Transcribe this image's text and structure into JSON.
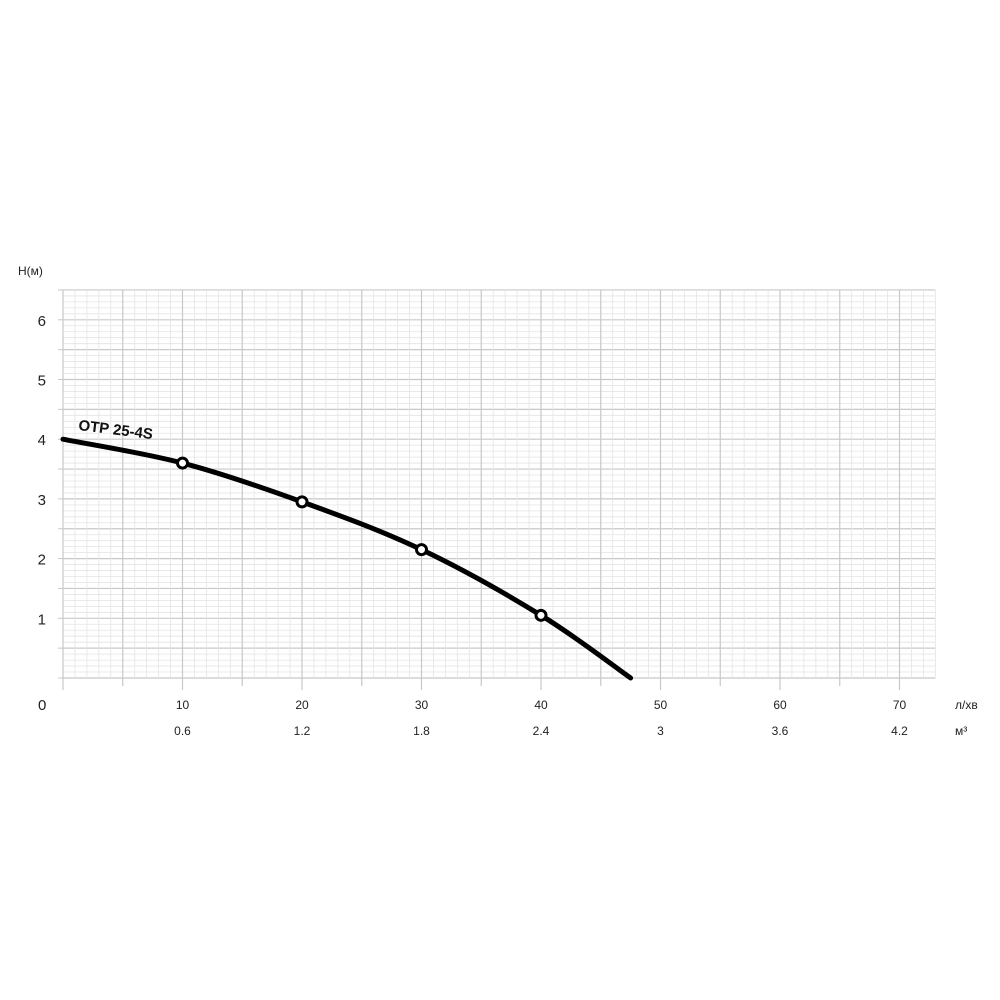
{
  "chart_data": {
    "type": "line",
    "ylabel": "H(м)",
    "xlabel_primary": "л/хв",
    "xlabel_secondary": "м³",
    "origin_label": "0",
    "xlim": [
      0,
      73
    ],
    "ylim": [
      0,
      6.5
    ],
    "grid": true,
    "x_ticks": [
      10,
      20,
      30,
      40,
      50,
      60,
      70
    ],
    "x_tick_labels": [
      "10",
      "20",
      "30",
      "40",
      "50",
      "60",
      "70"
    ],
    "x_secondary_tick_labels": [
      "0.6",
      "1.2",
      "1.8",
      "2.4",
      "3",
      "3.6",
      "4.2"
    ],
    "y_ticks": [
      1,
      2,
      3,
      4,
      5,
      6
    ],
    "y_tick_labels": [
      "1",
      "2",
      "3",
      "4",
      "5",
      "6"
    ],
    "series": [
      {
        "name": "OTP 25-4S",
        "color": "#000000",
        "x": [
          0,
          10,
          20,
          30,
          40,
          47.5
        ],
        "y": [
          4.0,
          3.6,
          2.95,
          2.15,
          1.05,
          0
        ],
        "markers_x": [
          10,
          20,
          30,
          40
        ],
        "markers_y": [
          3.6,
          2.95,
          2.15,
          1.05
        ]
      }
    ]
  }
}
